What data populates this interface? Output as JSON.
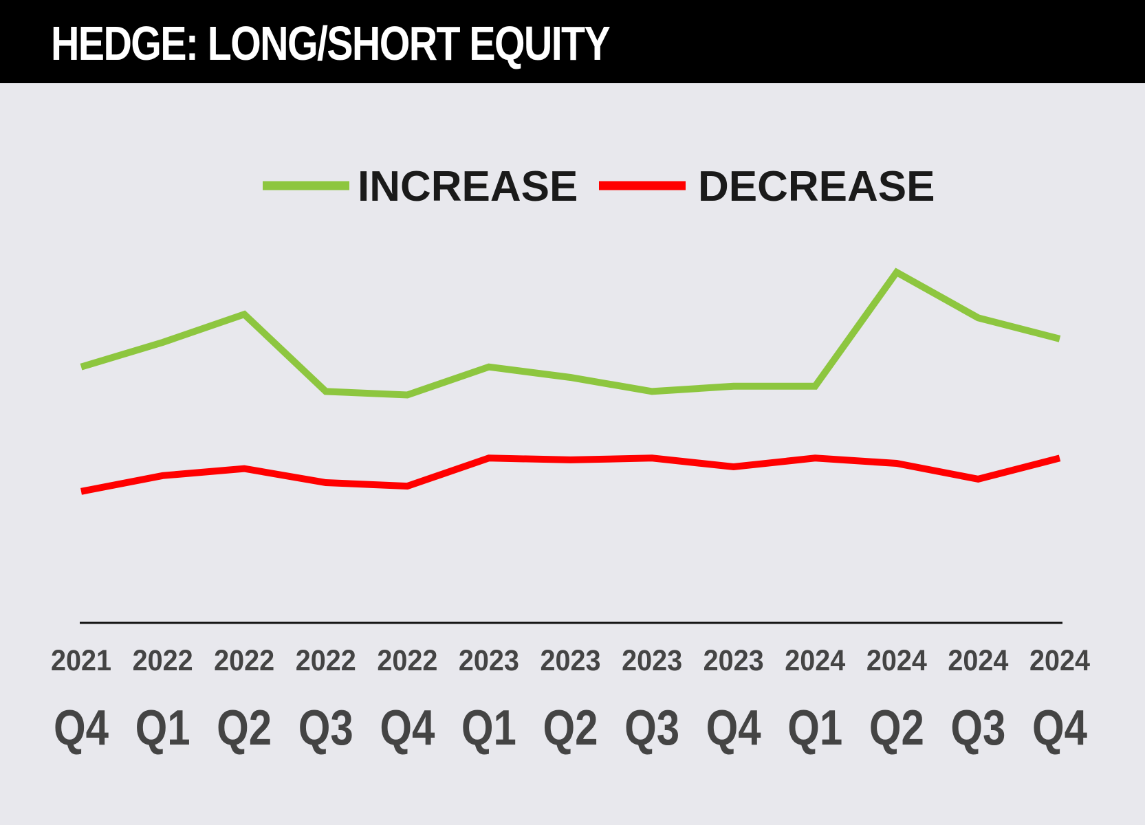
{
  "chart_data": {
    "type": "line",
    "title": "HEDGE: LONG/SHORT EQUITY",
    "categories": [
      {
        "year": "2021",
        "quarter": "Q4"
      },
      {
        "year": "2022",
        "quarter": "Q1"
      },
      {
        "year": "2022",
        "quarter": "Q2"
      },
      {
        "year": "2022",
        "quarter": "Q3"
      },
      {
        "year": "2022",
        "quarter": "Q4"
      },
      {
        "year": "2023",
        "quarter": "Q1"
      },
      {
        "year": "2023",
        "quarter": "Q2"
      },
      {
        "year": "2023",
        "quarter": "Q3"
      },
      {
        "year": "2023",
        "quarter": "Q4"
      },
      {
        "year": "2024",
        "quarter": "Q1"
      },
      {
        "year": "2024",
        "quarter": "Q2"
      },
      {
        "year": "2024",
        "quarter": "Q3"
      },
      {
        "year": "2024",
        "quarter": "Q4"
      }
    ],
    "series": [
      {
        "name": "INCREASE",
        "color": "#8dc63f",
        "values": [
          53,
          60,
          68,
          46,
          45,
          53,
          50,
          46,
          47.5,
          47.5,
          80,
          67,
          61
        ]
      },
      {
        "name": "DECREASE",
        "color": "#ff0000",
        "values": [
          17.5,
          22,
          24,
          20,
          19,
          27,
          26.5,
          27,
          24.5,
          27,
          25.5,
          21,
          27
        ]
      }
    ],
    "ylim": [
      -20,
      130
    ],
    "grid": false,
    "legend_position": "top-center",
    "xlabel": "",
    "ylabel": ""
  }
}
